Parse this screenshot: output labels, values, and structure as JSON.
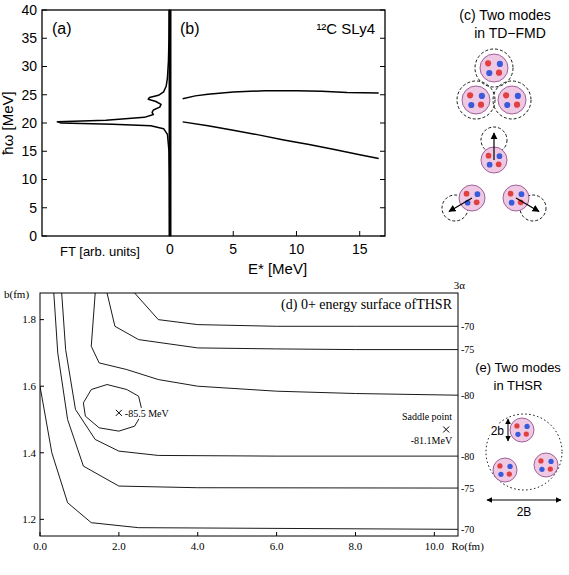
{
  "chart_data": [
    {
      "type": "line",
      "title": "(a)",
      "x_label": "FT [arb. units]",
      "y_label": "ħω [MeV]",
      "xlim": [
        1,
        0
      ],
      "xticks": [
        0
      ],
      "ylim": [
        0,
        40
      ],
      "yticks": [
        0,
        5,
        10,
        15,
        20,
        25,
        30,
        35,
        40
      ],
      "series": [
        {
          "color": "#000000",
          "x": [
            0.002,
            0.004,
            0.008,
            0.02,
            0.05,
            0.15,
            0.45,
            0.85,
            0.88,
            0.5,
            0.2,
            0.13,
            0.14,
            0.13,
            0.08,
            0.07,
            0.11,
            0.17,
            0.16,
            0.09,
            0.05,
            0.03,
            0.02,
            0.012,
            0.008,
            0.006
          ],
          "values": [
            0,
            10,
            15,
            18,
            19,
            19.5,
            19.8,
            20.0,
            20.2,
            20.5,
            21,
            21.5,
            21.9,
            22.3,
            22.8,
            23.3,
            23.8,
            24.2,
            24.5,
            24.9,
            25.5,
            26.5,
            28,
            31,
            35,
            40
          ]
        }
      ]
    },
    {
      "type": "line",
      "title": "(b)",
      "subtitle": "¹²C SLy4",
      "x_label": "E* [MeV]",
      "xlim": [
        0,
        17
      ],
      "xticks": [
        5,
        10,
        15
      ],
      "ylim": [
        0,
        40
      ],
      "yticks": [
        0,
        5,
        10,
        15,
        20,
        25,
        30,
        35,
        40
      ],
      "tick_labels": "x",
      "series": [
        {
          "color": "#000000",
          "x": [
            1,
            2,
            3,
            5,
            7.5,
            10,
            12,
            14,
            16.5
          ],
          "values": [
            24.3,
            24.8,
            25.1,
            25.5,
            25.7,
            25.7,
            25.6,
            25.4,
            25.3
          ]
        },
        {
          "color": "#000000",
          "x": [
            1,
            3,
            5,
            7,
            9,
            11,
            13,
            15,
            16.5
          ],
          "values": [
            20.2,
            19.5,
            18.7,
            17.9,
            17.0,
            16.2,
            15.3,
            14.4,
            13.7
          ]
        }
      ]
    },
    {
      "type": "line",
      "title": "(d) 0+ energy surface ofTHSR",
      "subtitle": "3α",
      "x_label": "Ro(fm)",
      "y_label": "b(fm)",
      "xlim": [
        0,
        10.6
      ],
      "xticks": [
        {
          "value": 0,
          "label": "0.0"
        },
        {
          "value": 2,
          "label": "2.0"
        },
        {
          "value": 4,
          "label": "4.0"
        },
        {
          "value": 6,
          "label": "6.0"
        },
        {
          "value": 8,
          "label": "8.0"
        },
        {
          "value": 10,
          "label": "10.0"
        }
      ],
      "ylim": [
        1.15,
        1.88
      ],
      "yticks": [
        1.2,
        1.4,
        1.6,
        1.8
      ],
      "series": [
        {
          "name": "-70",
          "color": "#000000",
          "x": [
            2.4,
            3,
            4,
            6,
            8,
            10.6
          ],
          "values": [
            1.88,
            1.8,
            1.785,
            1.78,
            1.78,
            1.78
          ]
        },
        {
          "name": "-75",
          "color": "#000000",
          "x": [
            1.7,
            1.9,
            2.5,
            4,
            6,
            8,
            10.6
          ],
          "values": [
            1.88,
            1.78,
            1.74,
            1.715,
            1.712,
            1.71,
            1.71
          ]
        },
        {
          "name": "-80",
          "color": "#000000",
          "x": [
            1.4,
            1.3,
            1.5,
            2.2,
            3,
            4,
            6,
            8,
            10.6
          ],
          "values": [
            1.88,
            1.72,
            1.67,
            1.65,
            1.62,
            1.6,
            1.585,
            1.578,
            1.573
          ]
        },
        {
          "color": "#000000",
          "x": [
            1.1,
            1.3,
            1.7,
            2.2,
            2.5,
            2.6,
            2.4,
            2.0,
            1.5,
            1.15,
            1.1
          ],
          "values": [
            1.55,
            1.59,
            1.605,
            1.59,
            1.57,
            1.52,
            1.48,
            1.465,
            1.475,
            1.51,
            1.55
          ]
        },
        {
          "name": "-80",
          "color": "#000000",
          "x": [
            0.55,
            0.65,
            0.9,
            1.4,
            2,
            3,
            6,
            10.6
          ],
          "values": [
            1.88,
            1.71,
            1.53,
            1.44,
            1.405,
            1.392,
            1.39,
            1.39
          ]
        },
        {
          "name": "-75",
          "color": "#000000",
          "x": [
            0.35,
            0.45,
            0.7,
            1.1,
            2,
            4,
            10.6
          ],
          "values": [
            1.88,
            1.7,
            1.5,
            1.36,
            1.3,
            1.295,
            1.294
          ]
        },
        {
          "name": "-70",
          "color": "#000000",
          "x": [
            0,
            0.3,
            0.7,
            1.3,
            2.5,
            10.6
          ],
          "values": [
            1.6,
            1.4,
            1.25,
            1.19,
            1.175,
            1.17
          ]
        },
        {
          "type": "scatter",
          "marker": "x",
          "name": "-85.5 MeV",
          "color": "#000000",
          "x": [
            2.0
          ],
          "values": [
            1.52
          ]
        },
        {
          "type": "scatter",
          "marker": "x",
          "name": "-81.1MeV",
          "color": "#000000",
          "x": [
            10.3
          ],
          "values": [
            1.47
          ]
        }
      ],
      "annotations": [
        {
          "text": "Saddle point",
          "x": 10.3,
          "y": 1.47
        }
      ]
    }
  ],
  "diagrams": {
    "c": {
      "title": [
        "(c) Two modes",
        "in TD−FMD"
      ]
    },
    "e": {
      "title": [
        "(e) Two modes",
        "in THSR"
      ],
      "labels": [
        "2b",
        "2B"
      ]
    }
  }
}
